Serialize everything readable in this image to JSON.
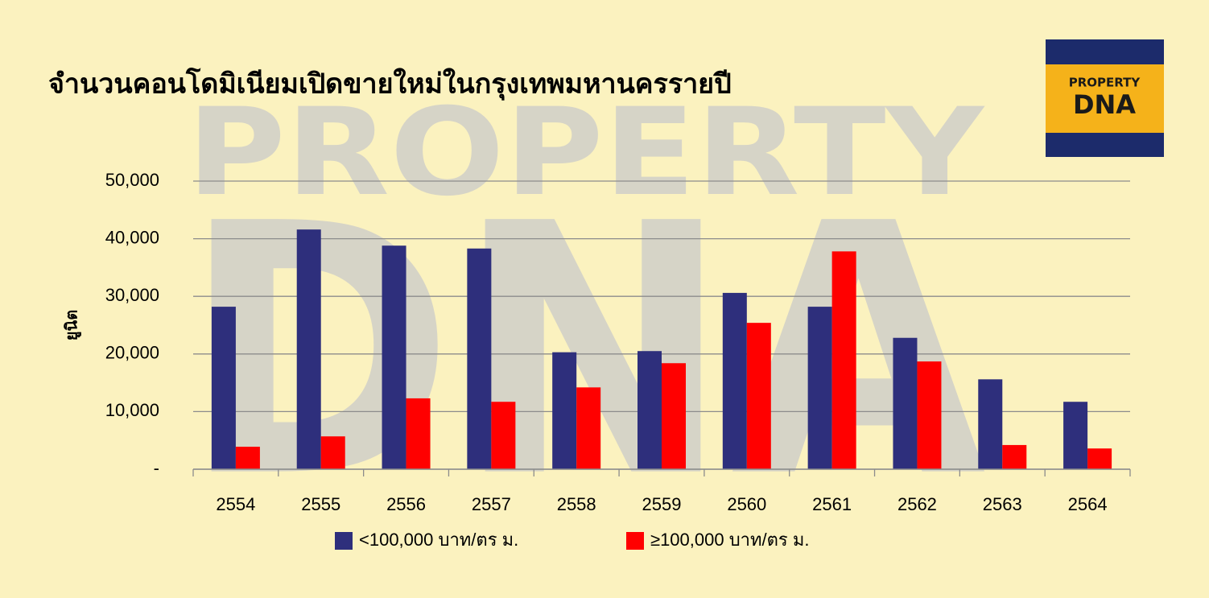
{
  "chart_data": {
    "type": "bar",
    "title": "จำนวนคอนโดมิเนียมเปิดขายใหม่ในกรุงเทพมหานครรายปี",
    "y_label": "ยูนิต",
    "categories": [
      "2554",
      "2555",
      "2556",
      "2557",
      "2558",
      "2559",
      "2560",
      "2561",
      "2562",
      "2563",
      "2564"
    ],
    "series": [
      {
        "name": "<100,000 บาท/ตร ม.",
        "color": "#2e2f7c",
        "values": [
          28200,
          41600,
          38800,
          38300,
          20300,
          20500,
          30600,
          28200,
          22800,
          15600,
          11700
        ]
      },
      {
        "name": "≥100,000 บาท/ตร ม.",
        "color": "#ff0000",
        "values": [
          3900,
          5700,
          12300,
          11700,
          14200,
          18400,
          25400,
          37800,
          18700,
          4200,
          3600
        ]
      }
    ],
    "ylim": [
      0,
      50000
    ],
    "yticks": [
      {
        "value": 0,
        "label": "-"
      },
      {
        "value": 10000,
        "label": "10,000"
      },
      {
        "value": 20000,
        "label": "20,000"
      },
      {
        "value": 30000,
        "label": "30,000"
      },
      {
        "value": 40000,
        "label": "40,000"
      },
      {
        "value": 50000,
        "label": "50,000"
      }
    ],
    "grid": true,
    "legend": "bottom"
  },
  "logo": {
    "line1": "PROPERTY",
    "line2": "DNA"
  },
  "watermark": {
    "line1": "PROPERTY",
    "line2": "DNA"
  }
}
